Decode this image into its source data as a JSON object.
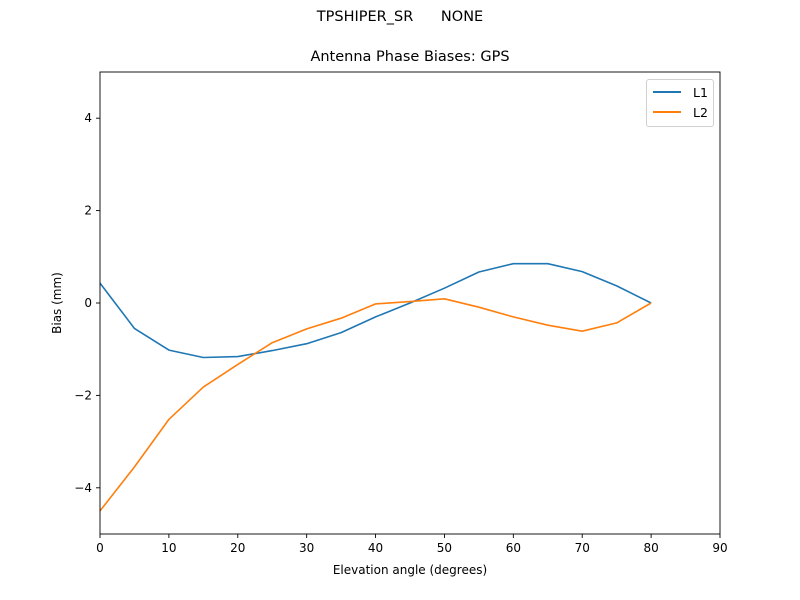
{
  "suptitle": "TPSHIPER_SR      NONE",
  "chart_data": {
    "type": "line",
    "title": "Antenna Phase Biases: GPS",
    "xlabel": "Elevation angle (degrees)",
    "ylabel": "Bias (mm)",
    "xlim": [
      0,
      90
    ],
    "ylim": [
      -5,
      5
    ],
    "xticks": [
      0,
      10,
      20,
      30,
      40,
      50,
      60,
      70,
      80,
      90
    ],
    "yticks": [
      -4,
      -2,
      0,
      2,
      4
    ],
    "ytick_labels": [
      "−4",
      "−2",
      "0",
      "2",
      "4"
    ],
    "grid": false,
    "legend_position": "upper right",
    "x": [
      0,
      5,
      10,
      15,
      20,
      25,
      30,
      35,
      40,
      45,
      50,
      55,
      60,
      65,
      70,
      75,
      80
    ],
    "series": [
      {
        "name": "L1",
        "color": "#1f77b4",
        "values": [
          0.43,
          -0.55,
          -1.02,
          -1.18,
          -1.16,
          -1.03,
          -0.88,
          -0.64,
          -0.3,
          0.0,
          0.32,
          0.67,
          0.85,
          0.85,
          0.68,
          0.37,
          0.0
        ]
      },
      {
        "name": "L2",
        "color": "#ff7f0e",
        "values": [
          -4.5,
          -3.55,
          -2.52,
          -1.82,
          -1.33,
          -0.86,
          -0.56,
          -0.33,
          -0.02,
          0.03,
          0.09,
          -0.09,
          -0.3,
          -0.48,
          -0.61,
          -0.43,
          0.0
        ]
      }
    ]
  }
}
